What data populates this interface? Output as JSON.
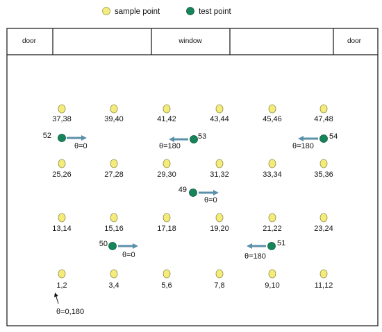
{
  "legend": {
    "sample_label": "sample point",
    "test_label": "test point",
    "sample_color": "#f3ec7a",
    "test_color": "#17855a"
  },
  "room_top": {
    "door_left": "door",
    "window": "window",
    "door_right": "door"
  },
  "sample_points": [
    "37,38",
    "39,40",
    "41,42",
    "43,44",
    "45,46",
    "47,48",
    "25,26",
    "27,28",
    "29,30",
    "31,32",
    "33,34",
    "35,36",
    "13,14",
    "15,16",
    "17,18",
    "19,20",
    "21,22",
    "23,24",
    "1,2",
    "3,4",
    "5,6",
    "7,8",
    "9,10",
    "11,12"
  ],
  "test_points": [
    {
      "id": "52",
      "angle": "θ=0",
      "direction": "right"
    },
    {
      "id": "53",
      "angle": "θ=180",
      "direction": "left"
    },
    {
      "id": "54",
      "angle": "θ=180",
      "direction": "left"
    },
    {
      "id": "49",
      "angle": "θ=0",
      "direction": "right"
    },
    {
      "id": "50",
      "angle": "θ=0",
      "direction": "right"
    },
    {
      "id": "51",
      "angle": "θ=180",
      "direction": "left"
    }
  ],
  "note": {
    "text": "θ=0,180"
  },
  "arrow_color": "#5b90aa"
}
